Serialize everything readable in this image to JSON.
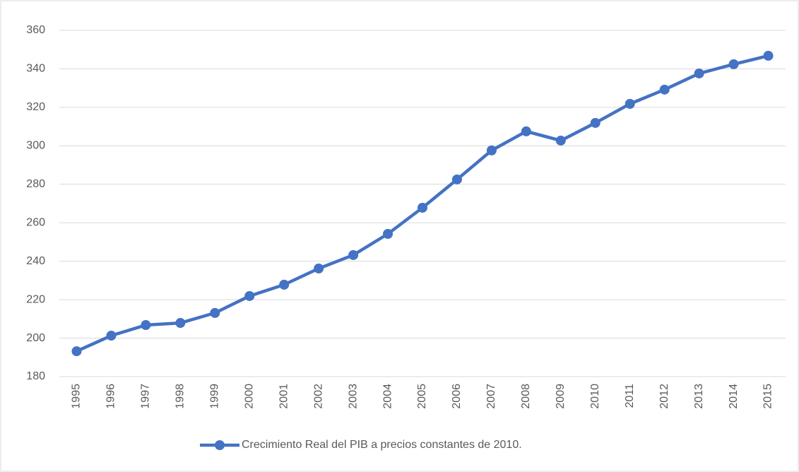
{
  "chart_data": {
    "type": "line",
    "categories": [
      "1995",
      "1996",
      "1997",
      "1998",
      "1999",
      "2000",
      "2001",
      "2002",
      "2003",
      "2004",
      "2005",
      "2006",
      "2007",
      "2008",
      "2009",
      "2010",
      "2011",
      "2012",
      "2013",
      "2014",
      "2015"
    ],
    "series": [
      {
        "name": "Crecimiento Real del PIB a precios constantes de 2010.",
        "color": "#4472c4",
        "values": [
          193.2,
          201.3,
          206.8,
          207.9,
          213.1,
          221.9,
          227.8,
          236.2,
          243.2,
          254.2,
          267.8,
          282.5,
          297.6,
          307.5,
          302.7,
          311.9,
          321.8,
          329.2,
          337.6,
          342.4,
          346.8
        ]
      }
    ],
    "ylim": [
      180,
      360
    ],
    "yticks": [
      180,
      200,
      220,
      240,
      260,
      280,
      300,
      320,
      340,
      360
    ],
    "grid": true,
    "legend": "bottom"
  }
}
